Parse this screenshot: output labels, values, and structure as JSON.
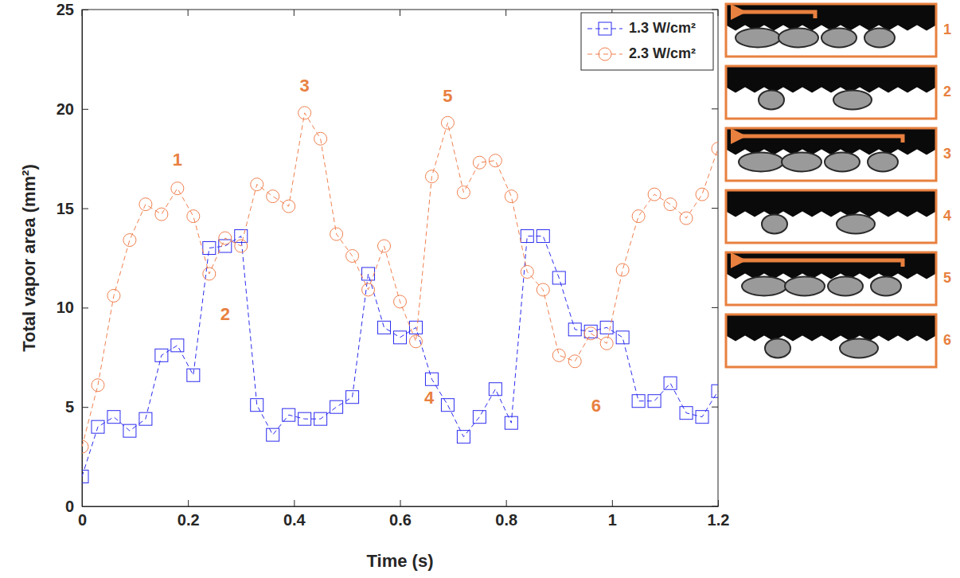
{
  "chart_data": {
    "type": "line",
    "x_label": "Time (s)",
    "y_label": "Total vapor area (mm²)",
    "x": [
      0,
      0.03,
      0.06,
      0.09,
      0.12,
      0.15,
      0.18,
      0.21,
      0.24,
      0.27,
      0.3,
      0.33,
      0.36,
      0.39,
      0.42,
      0.45,
      0.48,
      0.51,
      0.54,
      0.57,
      0.6,
      0.63,
      0.66,
      0.69,
      0.72,
      0.75,
      0.78,
      0.81,
      0.84,
      0.87,
      0.9,
      0.93,
      0.96,
      0.99,
      1.02,
      1.05,
      1.08,
      1.11,
      1.14,
      1.17,
      1.2
    ],
    "series": [
      {
        "name": "1.3 W/cm²",
        "color": "#2b2bf0",
        "marker": "square",
        "line_style": "dashed",
        "values": [
          1.5,
          4.0,
          4.5,
          3.8,
          4.4,
          7.6,
          8.1,
          6.6,
          13.0,
          13.1,
          13.6,
          5.1,
          3.6,
          4.6,
          4.4,
          4.4,
          5.0,
          5.5,
          11.7,
          9.0,
          8.5,
          9.0,
          6.4,
          5.1,
          3.5,
          4.5,
          5.9,
          4.2,
          13.6,
          13.6,
          11.5,
          8.9,
          8.8,
          9.0,
          8.5,
          5.3,
          5.3,
          6.2,
          4.7,
          4.5,
          5.8
        ]
      },
      {
        "name": "2.3 W/cm²",
        "color": "#f0804f",
        "marker": "circle",
        "line_style": "dashed",
        "values": [
          3.0,
          6.1,
          10.6,
          13.4,
          15.2,
          14.7,
          16.0,
          14.6,
          11.7,
          13.5,
          13.1,
          16.2,
          15.6,
          15.1,
          19.8,
          18.5,
          13.7,
          12.6,
          10.9,
          13.1,
          10.3,
          8.3,
          16.6,
          19.3,
          15.8,
          17.3,
          17.4,
          15.6,
          11.8,
          10.9,
          7.6,
          7.3,
          8.7,
          8.2,
          11.9,
          14.6,
          15.7,
          15.2,
          14.5,
          15.7,
          18.0
        ]
      }
    ],
    "xlim": [
      0,
      1.2
    ],
    "xticks": [
      0,
      0.2,
      0.4,
      0.6,
      0.8,
      1,
      1.2
    ],
    "ylim": [
      0,
      25
    ],
    "yticks": [
      0,
      5,
      10,
      15,
      20,
      25
    ],
    "legend": "upper right",
    "annotations": [
      {
        "text": "1",
        "x": 0.18,
        "y": 17.4
      },
      {
        "text": "2",
        "x": 0.27,
        "y": 9.6
      },
      {
        "text": "3",
        "x": 0.42,
        "y": 21.1
      },
      {
        "text": "4",
        "x": 0.655,
        "y": 5.4
      },
      {
        "text": "5",
        "x": 0.69,
        "y": 20.6
      },
      {
        "text": "6",
        "x": 0.97,
        "y": 5.0
      }
    ],
    "panels": [
      {
        "label": "1"
      },
      {
        "label": "2"
      },
      {
        "label": "3"
      },
      {
        "label": "4"
      },
      {
        "label": "5"
      },
      {
        "label": "6"
      }
    ]
  }
}
